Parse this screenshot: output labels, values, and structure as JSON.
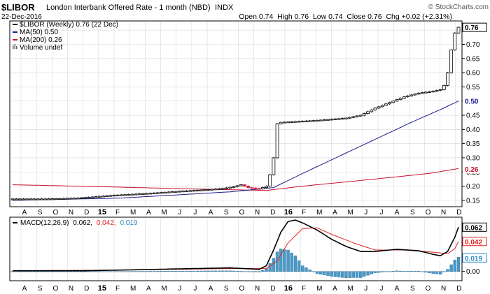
{
  "header": {
    "symbol": "$LIBOR",
    "name": "London Interbank Offered Rate - 1 month (NBD)",
    "exchange": "INDX",
    "date": "22-Dec-2016",
    "quote": "Open 0.74  High 0.76  Low 0.74  Close 0.76  Chg +0.02 (+2.31%)",
    "watermark": "© StockCharts.com"
  },
  "legend": {
    "price": "$LIBOR (Weekly) 0.76 (22 Dec)",
    "ma50": "MA(50) 0.50",
    "ma200": "MA(200) 0.26",
    "volume": "Volume undef"
  },
  "macd_legend": {
    "prefix": "MACD(12,26,9)",
    "macd": "0.062,",
    "signal": "0.042,",
    "hist": "0.019"
  },
  "colors": {
    "ma50": "#1a1a8c",
    "ma200": "#c8102e",
    "macd_line": "#000000",
    "signal_line": "#e02020",
    "histogram": "#4a9ac8",
    "down_candle": "#d6204a",
    "axis_label_bg": "#000000",
    "grid": "#d8d8d8"
  },
  "chart_data": [
    {
      "type": "candlestick",
      "title": "$LIBOR London Interbank Offered Rate - 1 month (NBD) INDX",
      "ylim": [
        0.13,
        0.78
      ],
      "y_ticks": [
        0.15,
        0.2,
        0.25,
        0.3,
        0.35,
        0.4,
        0.45,
        0.5,
        0.55,
        0.6,
        0.65,
        0.7,
        0.75
      ],
      "x_ticks": [
        "A",
        "S",
        "O",
        "N",
        "D",
        "15",
        "F",
        "M",
        "A",
        "M",
        "J",
        "J",
        "A",
        "S",
        "O",
        "N",
        "D",
        "16",
        "F",
        "M",
        "A",
        "M",
        "J",
        "J",
        "A",
        "S",
        "O",
        "N",
        "D"
      ],
      "bold_x_ticks": [
        "15",
        "16"
      ],
      "last_value_label": "0.76",
      "ma50_label": "0.50",
      "ma200_label": "0.26",
      "close_anchors": [
        {
          "w": 0,
          "v": 0.155
        },
        {
          "w": 9,
          "v": 0.155
        },
        {
          "w": 18,
          "v": 0.158
        },
        {
          "w": 28,
          "v": 0.168
        },
        {
          "w": 38,
          "v": 0.175
        },
        {
          "w": 46,
          "v": 0.182
        },
        {
          "w": 54,
          "v": 0.188
        },
        {
          "w": 58,
          "v": 0.192
        },
        {
          "w": 61,
          "v": 0.198
        },
        {
          "w": 63,
          "v": 0.205
        },
        {
          "w": 65,
          "v": 0.195
        },
        {
          "w": 68,
          "v": 0.19
        },
        {
          "w": 70,
          "v": 0.2
        },
        {
          "w": 71,
          "v": 0.24
        },
        {
          "w": 72,
          "v": 0.3
        },
        {
          "w": 73,
          "v": 0.42
        },
        {
          "w": 74,
          "v": 0.425
        },
        {
          "w": 84,
          "v": 0.432
        },
        {
          "w": 92,
          "v": 0.44
        },
        {
          "w": 96,
          "v": 0.45
        },
        {
          "w": 100,
          "v": 0.475
        },
        {
          "w": 104,
          "v": 0.495
        },
        {
          "w": 108,
          "v": 0.515
        },
        {
          "w": 112,
          "v": 0.528
        },
        {
          "w": 116,
          "v": 0.535
        },
        {
          "w": 118,
          "v": 0.54
        },
        {
          "w": 119,
          "v": 0.555
        },
        {
          "w": 120,
          "v": 0.6
        },
        {
          "w": 121,
          "v": 0.68
        },
        {
          "w": 122,
          "v": 0.74
        },
        {
          "w": 123,
          "v": 0.76
        }
      ],
      "ma50": [
        {
          "w": 0,
          "v": 0.15
        },
        {
          "w": 30,
          "v": 0.158
        },
        {
          "w": 60,
          "v": 0.18
        },
        {
          "w": 72,
          "v": 0.195
        },
        {
          "w": 80,
          "v": 0.245
        },
        {
          "w": 90,
          "v": 0.305
        },
        {
          "w": 100,
          "v": 0.365
        },
        {
          "w": 110,
          "v": 0.425
        },
        {
          "w": 118,
          "v": 0.47
        },
        {
          "w": 123,
          "v": 0.5
        }
      ],
      "ma200": [
        {
          "w": 0,
          "v": 0.205
        },
        {
          "w": 25,
          "v": 0.198
        },
        {
          "w": 50,
          "v": 0.19
        },
        {
          "w": 70,
          "v": 0.185
        },
        {
          "w": 80,
          "v": 0.2
        },
        {
          "w": 100,
          "v": 0.225
        },
        {
          "w": 115,
          "v": 0.245
        },
        {
          "w": 123,
          "v": 0.262
        }
      ]
    },
    {
      "type": "line",
      "title": "MACD(12,26,9) 0.062, 0.042, 0.019",
      "ylim": [
        -0.012,
        0.075
      ],
      "y_ticks": [
        0.0
      ],
      "right_labels": [
        "0.062",
        "0.042",
        "0.019"
      ],
      "macd": [
        {
          "w": 0,
          "v": 0.001
        },
        {
          "w": 20,
          "v": 0.001
        },
        {
          "w": 30,
          "v": 0.002
        },
        {
          "w": 50,
          "v": 0.004
        },
        {
          "w": 60,
          "v": 0.005
        },
        {
          "w": 68,
          "v": 0.003
        },
        {
          "w": 70,
          "v": 0.008
        },
        {
          "w": 72,
          "v": 0.03
        },
        {
          "w": 74,
          "v": 0.055
        },
        {
          "w": 76,
          "v": 0.07
        },
        {
          "w": 78,
          "v": 0.072
        },
        {
          "w": 80,
          "v": 0.068
        },
        {
          "w": 84,
          "v": 0.058
        },
        {
          "w": 88,
          "v": 0.045
        },
        {
          "w": 92,
          "v": 0.035
        },
        {
          "w": 96,
          "v": 0.028
        },
        {
          "w": 100,
          "v": 0.028
        },
        {
          "w": 106,
          "v": 0.031
        },
        {
          "w": 112,
          "v": 0.029
        },
        {
          "w": 116,
          "v": 0.024
        },
        {
          "w": 118,
          "v": 0.022
        },
        {
          "w": 120,
          "v": 0.028
        },
        {
          "w": 122,
          "v": 0.048
        },
        {
          "w": 123,
          "v": 0.062
        }
      ],
      "signal": [
        {
          "w": 0,
          "v": 0.001
        },
        {
          "w": 30,
          "v": 0.002
        },
        {
          "w": 60,
          "v": 0.004
        },
        {
          "w": 70,
          "v": 0.004
        },
        {
          "w": 73,
          "v": 0.015
        },
        {
          "w": 76,
          "v": 0.04
        },
        {
          "w": 80,
          "v": 0.06
        },
        {
          "w": 84,
          "v": 0.061
        },
        {
          "w": 88,
          "v": 0.052
        },
        {
          "w": 94,
          "v": 0.04
        },
        {
          "w": 100,
          "v": 0.03
        },
        {
          "w": 108,
          "v": 0.03
        },
        {
          "w": 116,
          "v": 0.027
        },
        {
          "w": 120,
          "v": 0.025
        },
        {
          "w": 122,
          "v": 0.032
        },
        {
          "w": 123,
          "v": 0.042
        }
      ]
    }
  ]
}
